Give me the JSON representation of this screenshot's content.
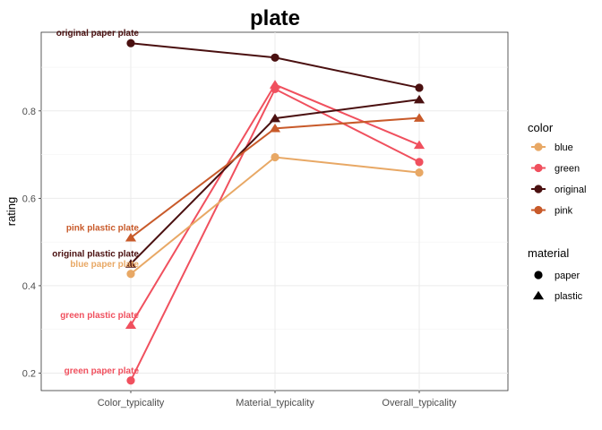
{
  "chart_data": {
    "type": "line",
    "title": "plate",
    "xlabel": "",
    "ylabel": "rating",
    "categories": [
      "Color_typicality",
      "Material_typicality",
      "Overall_typicality"
    ],
    "y_ticks": [
      "0.2",
      "0.4",
      "0.6",
      "0.8"
    ],
    "ylim": [
      0.16,
      0.98
    ],
    "grid": true,
    "legend_placement": "right",
    "legend_color": {
      "title": "color",
      "items": [
        {
          "label": "blue",
          "color": "#E8A865"
        },
        {
          "label": "green",
          "color": "#F0505E"
        },
        {
          "label": "original",
          "color": "#4A1010"
        },
        {
          "label": "pink",
          "color": "#C85A2A"
        }
      ]
    },
    "legend_material": {
      "title": "material",
      "items": [
        {
          "label": "paper",
          "shape": "circle"
        },
        {
          "label": "plastic",
          "shape": "triangle"
        }
      ]
    },
    "series": [
      {
        "color": "#4A1010",
        "shape": "circle",
        "label": "original paper plate",
        "values": [
          0.955,
          0.922,
          0.853
        ]
      },
      {
        "color": "#F0505E",
        "shape": "triangle",
        "label": "green plastic plate",
        "values": [
          0.31,
          0.86,
          0.722
        ]
      },
      {
        "color": "#F0505E",
        "shape": "circle",
        "label": "green paper plate",
        "values": [
          0.183,
          0.85,
          0.683
        ]
      },
      {
        "color": "#4A1010",
        "shape": "triangle",
        "label": "original plastic plate",
        "values": [
          0.45,
          0.783,
          0.826
        ]
      },
      {
        "color": "#C85A2A",
        "shape": "triangle",
        "label": "pink plastic plate",
        "values": [
          0.51,
          0.76,
          0.784
        ]
      },
      {
        "color": "#E8A865",
        "shape": "circle",
        "label": "blue paper plate",
        "values": [
          0.427,
          0.694,
          0.659
        ]
      }
    ]
  }
}
